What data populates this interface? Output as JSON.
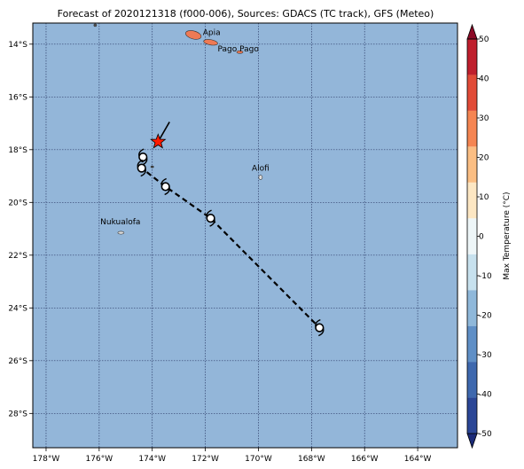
{
  "title": "Forecast of 2020121318 (f000-006), Sources: GDACS (TC track), GFS (Meteo)",
  "colors": {
    "ocean": "#93b6d9",
    "grid": "#2f3f6b",
    "track": "#000000",
    "current_position_star": "#ff1a00",
    "island_land": "#ee7a55"
  },
  "map": {
    "lon_range": [
      -178.5,
      -162.5
    ],
    "lat_range": [
      -29.3,
      -13.2
    ],
    "lon_ticks": [
      {
        "value": -178,
        "label": "178°W"
      },
      {
        "value": -176,
        "label": "176°W"
      },
      {
        "value": -174,
        "label": "174°W"
      },
      {
        "value": -172,
        "label": "172°W"
      },
      {
        "value": -170,
        "label": "170°W"
      },
      {
        "value": -168,
        "label": "168°W"
      },
      {
        "value": -166,
        "label": "166°W"
      },
      {
        "value": -164,
        "label": "164°W"
      }
    ],
    "lat_ticks": [
      {
        "value": -14,
        "label": "14°S"
      },
      {
        "value": -16,
        "label": "16°S"
      },
      {
        "value": -18,
        "label": "18°S"
      },
      {
        "value": -20,
        "label": "20°S"
      },
      {
        "value": -22,
        "label": "22°S"
      },
      {
        "value": -24,
        "label": "24°S"
      },
      {
        "value": -26,
        "label": "26°S"
      },
      {
        "value": -28,
        "label": "28°S"
      }
    ],
    "places": [
      {
        "name": "Apia",
        "lon": -171.76,
        "lat": -13.83
      },
      {
        "name": "Pago Pago",
        "lon": -170.7,
        "lat": -14.28
      },
      {
        "name": "Alofi",
        "lon": -169.92,
        "lat": -19.06
      },
      {
        "name": "Nukualofa",
        "lon": -175.2,
        "lat": -21.14
      }
    ],
    "cyclone_track": [
      {
        "lon": -174.35,
        "lat": -18.28
      },
      {
        "lon": -174.4,
        "lat": -18.7
      },
      {
        "lon": -173.5,
        "lat": -19.4
      },
      {
        "lon": -171.8,
        "lat": -20.6
      },
      {
        "lon": -167.7,
        "lat": -24.75
      }
    ],
    "current_position": {
      "lon": -173.78,
      "lat": -17.7
    },
    "motion_vector": {
      "lon": -173.35,
      "lat": -16.95
    }
  },
  "colorbar": {
    "label": "Max Temperature (°C)",
    "min": -50,
    "max": 50,
    "tick_values": [
      -50,
      -40,
      -30,
      -20,
      -10,
      0,
      10,
      20,
      30,
      40,
      50
    ],
    "colors": [
      "#1b2a78",
      "#2b4696",
      "#3e68ae",
      "#5f8fc6",
      "#8fb8da",
      "#c7e1ee",
      "#eef6f8",
      "#fde7c3",
      "#fbbe83",
      "#f58552",
      "#e14b37",
      "#bf1f2d",
      "#8c0a26"
    ]
  }
}
